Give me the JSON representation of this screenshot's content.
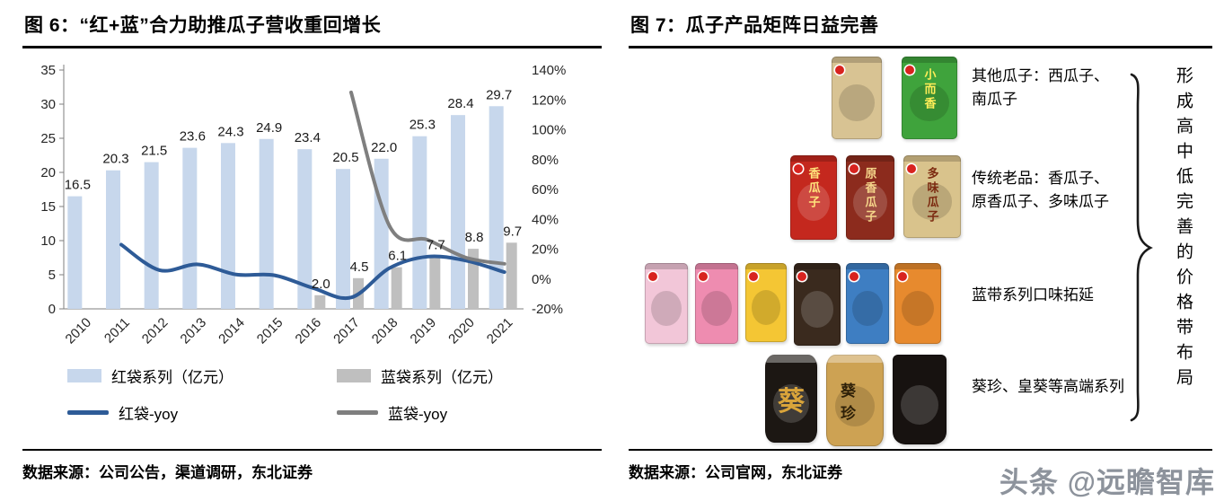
{
  "left_panel": {
    "title": "图 6：“红+蓝”合力助推瓜子营收重回增长",
    "source": "数据来源：公司公告，渠道调研，东北证券",
    "legend": [
      {
        "label": "红袋系列（亿元）",
        "type": "bar",
        "color": "#c7d7ec"
      },
      {
        "label": "蓝袋系列（亿元）",
        "type": "bar",
        "color": "#bfbfbf"
      },
      {
        "label": "红袋-yoy",
        "type": "line",
        "color": "#2e5b97"
      },
      {
        "label": "蓝袋-yoy",
        "type": "line",
        "color": "#7f7f7f"
      }
    ]
  },
  "chart_data": {
    "type": "bar+line combo",
    "categories": [
      "2010",
      "2011",
      "2012",
      "2013",
      "2014",
      "2015",
      "2016",
      "2017",
      "2018",
      "2019",
      "2020",
      "2021"
    ],
    "series": [
      {
        "name": "红袋系列（亿元）",
        "type": "bar",
        "axis": "left",
        "color": "#c7d7ec",
        "values": [
          16.5,
          20.3,
          21.5,
          23.6,
          24.3,
          24.9,
          23.4,
          20.5,
          22.0,
          25.3,
          28.4,
          29.7
        ]
      },
      {
        "name": "蓝袋系列（亿元）",
        "type": "bar",
        "axis": "left",
        "color": "#bfbfbf",
        "values": [
          null,
          null,
          null,
          null,
          null,
          null,
          2.0,
          4.5,
          6.1,
          7.7,
          8.8,
          9.7
        ]
      },
      {
        "name": "红袋-yoy",
        "type": "line",
        "axis": "right",
        "color": "#2e5b97",
        "values": [
          null,
          23.0,
          5.9,
          9.8,
          3.0,
          2.5,
          -6.0,
          -12.4,
          7.3,
          15.0,
          12.3,
          4.6
        ]
      },
      {
        "name": "蓝袋-yoy",
        "type": "line",
        "axis": "right",
        "color": "#7f7f7f",
        "values": [
          null,
          null,
          null,
          null,
          null,
          null,
          null,
          125.0,
          35.6,
          26.2,
          14.3,
          10.2
        ]
      }
    ],
    "left_axis": {
      "min": 0,
      "max": 35,
      "step": 5
    },
    "right_axis": {
      "min": -20,
      "max": 140,
      "step": 20,
      "format": "percent"
    },
    "grid": "off",
    "legend_position": "bottom"
  },
  "right_panel": {
    "title": "图 7：瓜子产品矩阵日益完善",
    "source": "数据来源：公司官网，东北证券",
    "price_band_text": "形成高中低完善的价格带布局",
    "rows": [
      {
        "label_lines": [
          "其他瓜子：西瓜子、",
          "南瓜子"
        ],
        "products": [
          {
            "shape": "bag",
            "color": "#d8c393",
            "label": "",
            "text_color": "#ffffff"
          },
          {
            "shape": "bag",
            "color": "#3fa33c",
            "label": "小而香",
            "text_color": "#ffee58"
          }
        ]
      },
      {
        "label_lines": [
          "传统老品：香瓜子、",
          "原香瓜子、多味瓜子"
        ],
        "products": [
          {
            "shape": "bag",
            "color": "#c4281e",
            "label": "香瓜子",
            "text_color": "#ffe27a"
          },
          {
            "shape": "bag",
            "color": "#8c2b1d",
            "label": "原香瓜子",
            "text_color": "#f5d58a"
          },
          {
            "shape": "bag",
            "color": "#d9c38c",
            "label": "多味瓜子",
            "text_color": "#7c2a10"
          }
        ]
      },
      {
        "label_lines": [
          "蓝带系列口味拓延"
        ],
        "products": [
          {
            "shape": "bag",
            "color": "#f2c6d8",
            "label": "",
            "text_color": "#333333"
          },
          {
            "shape": "bag",
            "color": "#ee8cb0",
            "label": "",
            "text_color": "#ffffff"
          },
          {
            "shape": "bag",
            "color": "#f4c634",
            "label": "",
            "text_color": "#5a3a00"
          },
          {
            "shape": "bag",
            "color": "#3a2a1e",
            "label": "",
            "text_color": "#ffffff"
          },
          {
            "shape": "bag",
            "color": "#3e7ec2",
            "label": "",
            "text_color": "#ffffff"
          },
          {
            "shape": "bag",
            "color": "#e78a2e",
            "label": "",
            "text_color": "#ffffff"
          }
        ]
      },
      {
        "label_lines": [
          "葵珍、皇葵等高端系列"
        ],
        "products": [
          {
            "shape": "can",
            "color": "#1c1713",
            "label": "葵",
            "text_color": "#d9a43a"
          },
          {
            "shape": "can",
            "color": "#cda253",
            "label": "葵珍",
            "text_color": "#2e2008"
          },
          {
            "shape": "pouch",
            "color": "#171210",
            "label": "",
            "text_color": "#d9a43a"
          }
        ]
      }
    ]
  },
  "watermark": {
    "text": "头条 @远瞻智库"
  }
}
